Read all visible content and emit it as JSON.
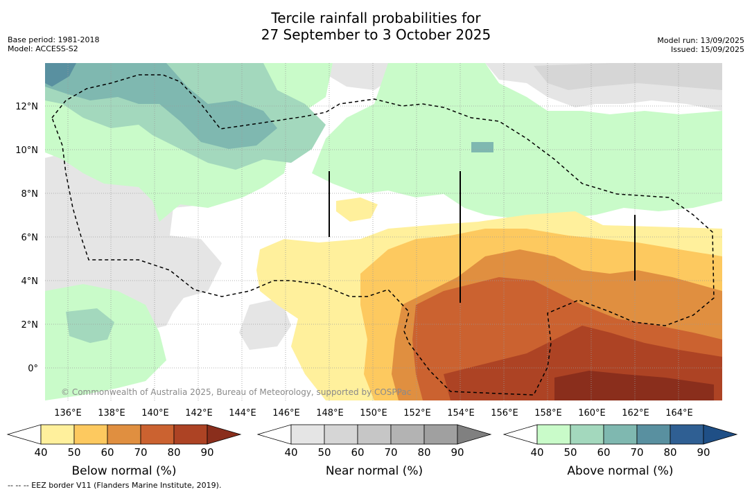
{
  "title_line1": "Tercile rainfall probabilities for",
  "title_line2": "27 September to 3 October 2025",
  "base_period": "Base period: 1981-2018",
  "model": "Model: ACCESS-S2",
  "model_run": "Model run: 13/09/2025",
  "issued": "Issued: 15/09/2025",
  "copyright": "© Commonwealth of Australia 2025, Bureau of Meteorology, supported by COSPPac",
  "footnote": "-- -- -- EEZ border V11 (Flanders Marine Institute, 2019).",
  "lon_labels": [
    "136°E",
    "138°E",
    "140°E",
    "142°E",
    "144°E",
    "146°E",
    "148°E",
    "150°E",
    "152°E",
    "154°E",
    "156°E",
    "158°E",
    "160°E",
    "162°E",
    "164°E"
  ],
  "lat_labels": [
    "12°N",
    "10°N",
    "8°N",
    "6°N",
    "4°N",
    "2°N",
    "0°"
  ],
  "colorbars": [
    {
      "title": "Below normal (%)",
      "ticks": [
        "40",
        "50",
        "60",
        "70",
        "80",
        "90"
      ],
      "colors": [
        "#ffffff",
        "#fff09c",
        "#fdc95f",
        "#e08f40",
        "#cb6230",
        "#ad4324",
        "#8a2e1c"
      ]
    },
    {
      "title": "Near normal (%)",
      "ticks": [
        "40",
        "50",
        "60",
        "70",
        "80",
        "90"
      ],
      "colors": [
        "#ffffff",
        "#e5e5e5",
        "#d6d6d6",
        "#c6c6c6",
        "#b3b3b3",
        "#a0a0a0",
        "#808080"
      ]
    },
    {
      "title": "Above normal (%)",
      "ticks": [
        "40",
        "50",
        "60",
        "70",
        "80",
        "90"
      ],
      "colors": [
        "#ffffff",
        "#c9fbc9",
        "#a3d8bd",
        "#7fb8b0",
        "#5990a0",
        "#2f5f93",
        "#1f4f86"
      ]
    }
  ]
}
